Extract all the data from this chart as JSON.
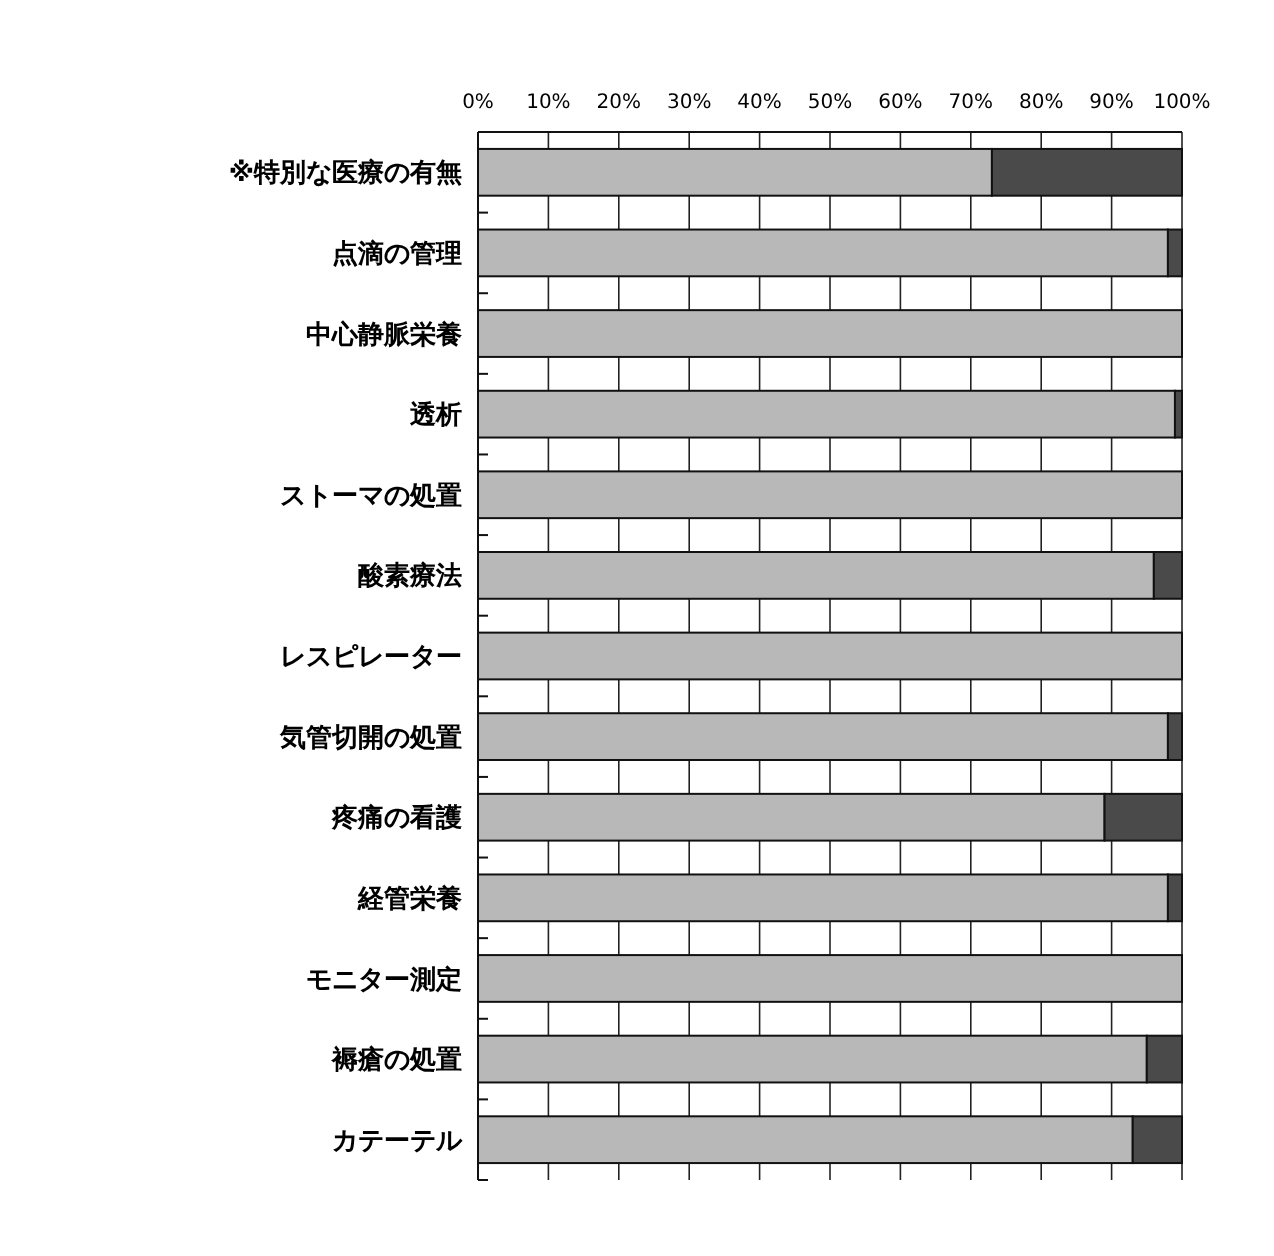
{
  "chart_data": {
    "type": "bar",
    "orientation": "horizontal",
    "stacked": true,
    "categories": [
      "※特別な医療の有無",
      "点滴の管理",
      "中心静脈栄養",
      "透析",
      "ストーマの処置",
      "酸素療法",
      "レスピレーター",
      "気管切開の処置",
      "疼痛の看護",
      "経管栄養",
      "モニター測定",
      "褥瘡の処置",
      "カテーテル"
    ],
    "series": [
      {
        "color": "#b8b8b8",
        "values": [
          73,
          98,
          100,
          99,
          100,
          96,
          100,
          98,
          89,
          98,
          100,
          95,
          93
        ]
      },
      {
        "color": "#4a4a4a",
        "values": [
          27,
          2,
          0,
          1,
          0,
          4,
          0,
          2,
          11,
          2,
          0,
          5,
          7
        ]
      }
    ],
    "xlim": [
      0,
      100
    ],
    "xticks": [
      {
        "value": 0,
        "label": "0%"
      },
      {
        "value": 10,
        "label": "10%"
      },
      {
        "value": 20,
        "label": "20%"
      },
      {
        "value": 30,
        "label": "30%"
      },
      {
        "value": 40,
        "label": "40%"
      },
      {
        "value": 50,
        "label": "50%"
      },
      {
        "value": 60,
        "label": "60%"
      },
      {
        "value": 70,
        "label": "70%"
      },
      {
        "value": 80,
        "label": "80%"
      },
      {
        "value": 90,
        "label": "90%"
      },
      {
        "value": 100,
        "label": "100%"
      }
    ],
    "grid": "x"
  }
}
